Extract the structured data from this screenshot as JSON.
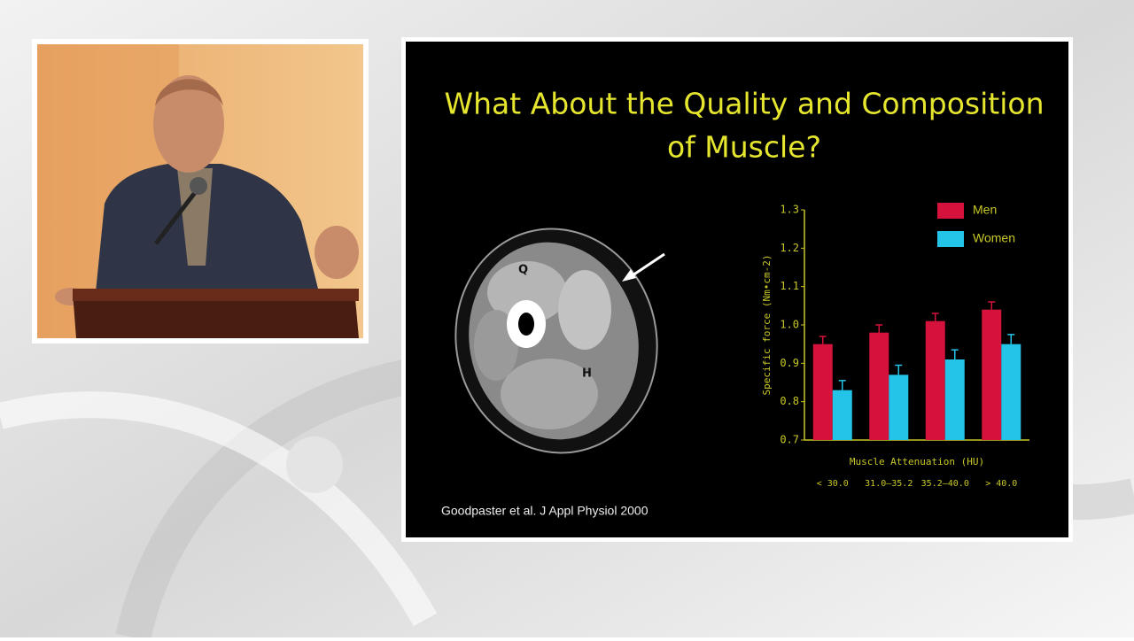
{
  "slide": {
    "title_lines": [
      "What About the Quality and Composition",
      "of Muscle?"
    ],
    "citation": "Goodpaster et al. J Appl Physiol 2000",
    "image_labels": [
      "Q",
      "H"
    ]
  },
  "chart_data": {
    "type": "bar",
    "y_label": "Specific force (Nm•cm-2)",
    "x_label": "Muscle Attenuation (HU)",
    "categories": [
      "< 30.0",
      "31.0–35.2",
      "35.2–40.0",
      "> 40.0"
    ],
    "series": [
      {
        "name": "Men",
        "color": "#d4123c",
        "values": [
          0.95,
          0.98,
          1.01,
          1.04
        ],
        "errors": [
          0.02,
          0.02,
          0.02,
          0.02
        ]
      },
      {
        "name": "Women",
        "color": "#24c4e8",
        "values": [
          0.83,
          0.87,
          0.91,
          0.95
        ],
        "errors": [
          0.025,
          0.025,
          0.025,
          0.025
        ]
      }
    ],
    "ylim": [
      0.7,
      1.3
    ],
    "yticks": [
      0.7,
      0.8,
      0.9,
      {
        "value": 1,
        "label": "1.0"
      },
      1.1,
      1.2,
      1.3
    ],
    "legend": "top-right"
  }
}
